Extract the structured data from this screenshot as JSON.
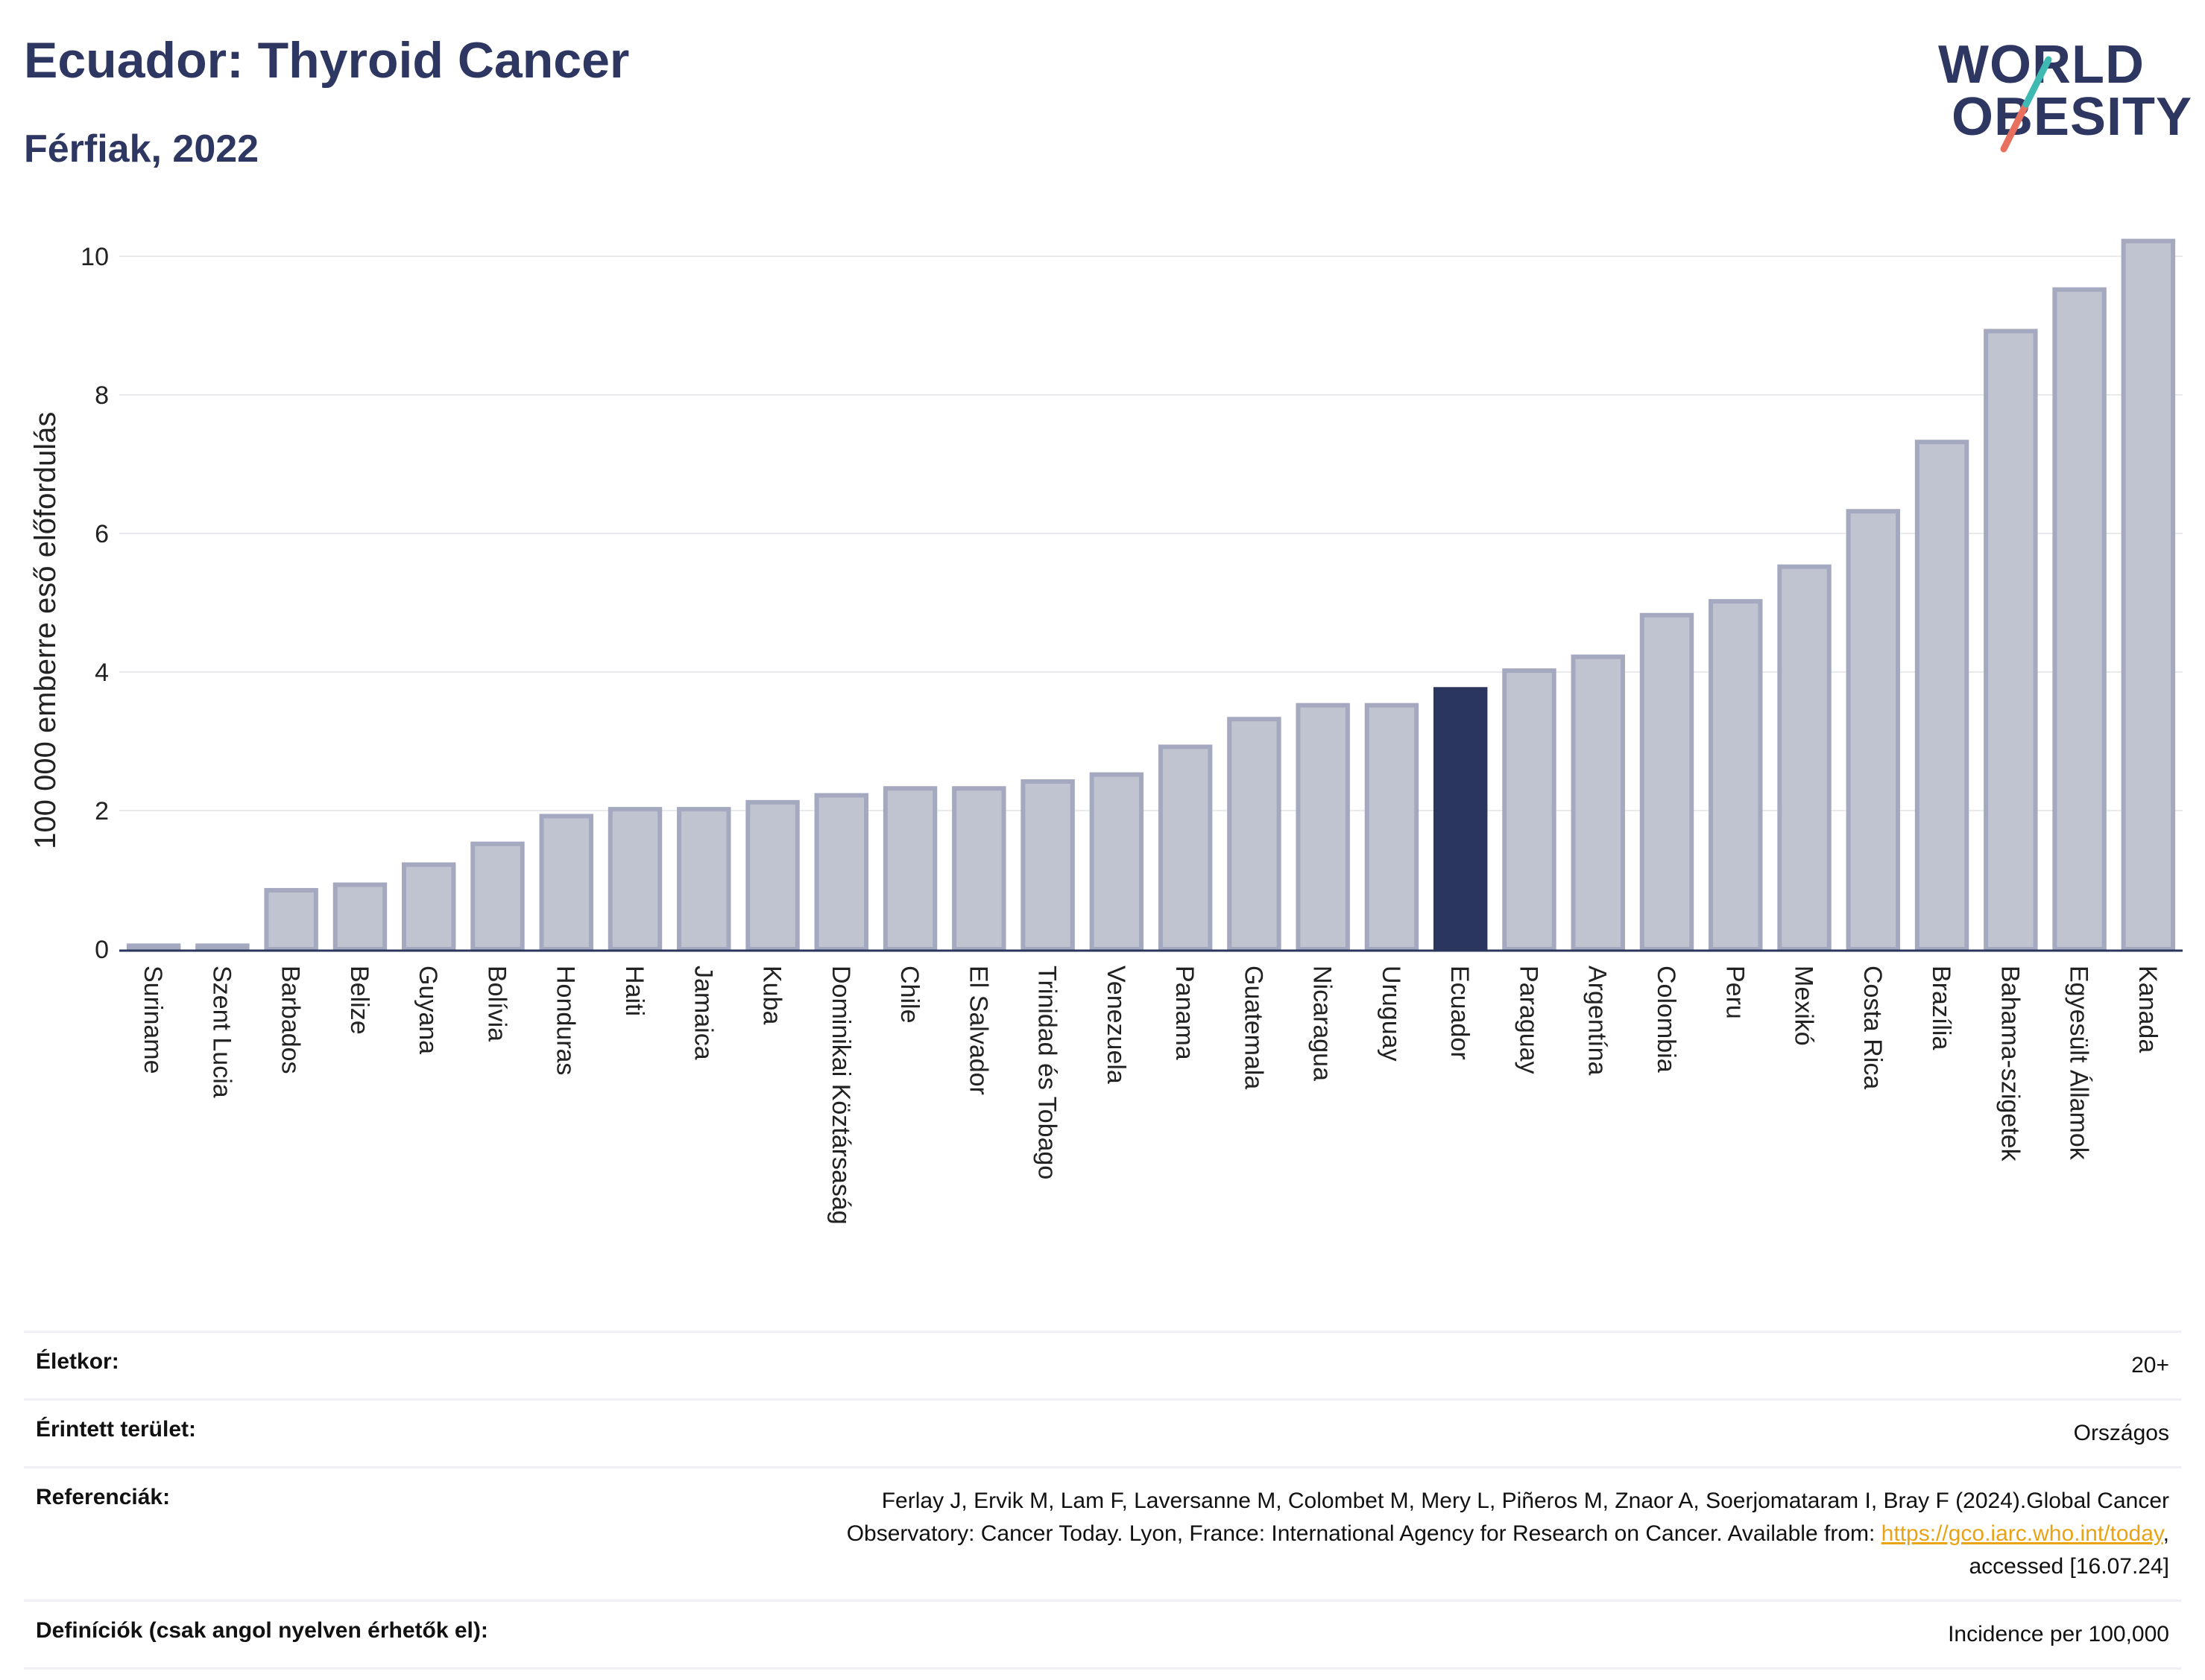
{
  "header": {
    "title": "Ecuador: Thyroid Cancer",
    "subtitle": "Férfiak, 2022"
  },
  "logo": {
    "line1": "WORLD",
    "line2": "OBESITY"
  },
  "colors": {
    "bar": "#c0c3d0",
    "bar_edge": "#a4a9bf",
    "highlight": "#2b365e",
    "grid": "#e8eaee"
  },
  "chart_data": {
    "type": "bar",
    "ylabel": "100 000 emberre eső előfordulás",
    "ylim": [
      0,
      10.5
    ],
    "yticks": [
      0,
      2,
      4,
      6,
      8,
      10
    ],
    "highlight": "Ecuador",
    "categories": [
      "Suriname",
      "Szent Lucia",
      "Barbados",
      "Belize",
      "Guyana",
      "Bolívia",
      "Honduras",
      "Haiti",
      "Jamaica",
      "Kuba",
      "Dominikai Köztársaság",
      "Chile",
      "El Salvador",
      "Trinidad és Tobago",
      "Venezuela",
      "Panama",
      "Guatemala",
      "Nicaragua",
      "Uruguay",
      "Ecuador",
      "Paraguay",
      "Argentína",
      "Colombia",
      "Peru",
      "Mexikó",
      "Costa Rica",
      "Brazília",
      "Bahama-szigetek",
      "Egyesült Államok",
      "Kanada"
    ],
    "values": [
      0.05,
      0.05,
      0.85,
      0.93,
      1.22,
      1.52,
      1.92,
      2.02,
      2.02,
      2.12,
      2.22,
      2.32,
      2.32,
      2.42,
      2.52,
      2.92,
      3.32,
      3.52,
      3.52,
      3.75,
      4.02,
      4.22,
      4.82,
      5.02,
      5.52,
      6.32,
      7.32,
      8.92,
      9.52,
      10.22
    ]
  },
  "meta": {
    "age_label": "Életkor:",
    "age_value": "20+",
    "area_label": "Érintett terület:",
    "area_value": "Országos",
    "ref_label": "Referenciák:",
    "ref_text_1": "Ferlay J, Ervik M, Lam F, Laversanne M, Colombet M, Mery L, Piñeros M, Znaor A, Soerjomataram I, Bray F (2024).Global Cancer",
    "ref_text_2": "Observatory: Cancer Today. Lyon, France: International Agency for Research on Cancer. Available from: ",
    "ref_link": "https://gco.iarc.who.int/today",
    "ref_text_3": ",",
    "ref_text_4": "accessed [16.07.24]",
    "def_label": "Definíciók (csak angol nyelven érhetők el):",
    "def_value": "Incidence per 100,000"
  }
}
